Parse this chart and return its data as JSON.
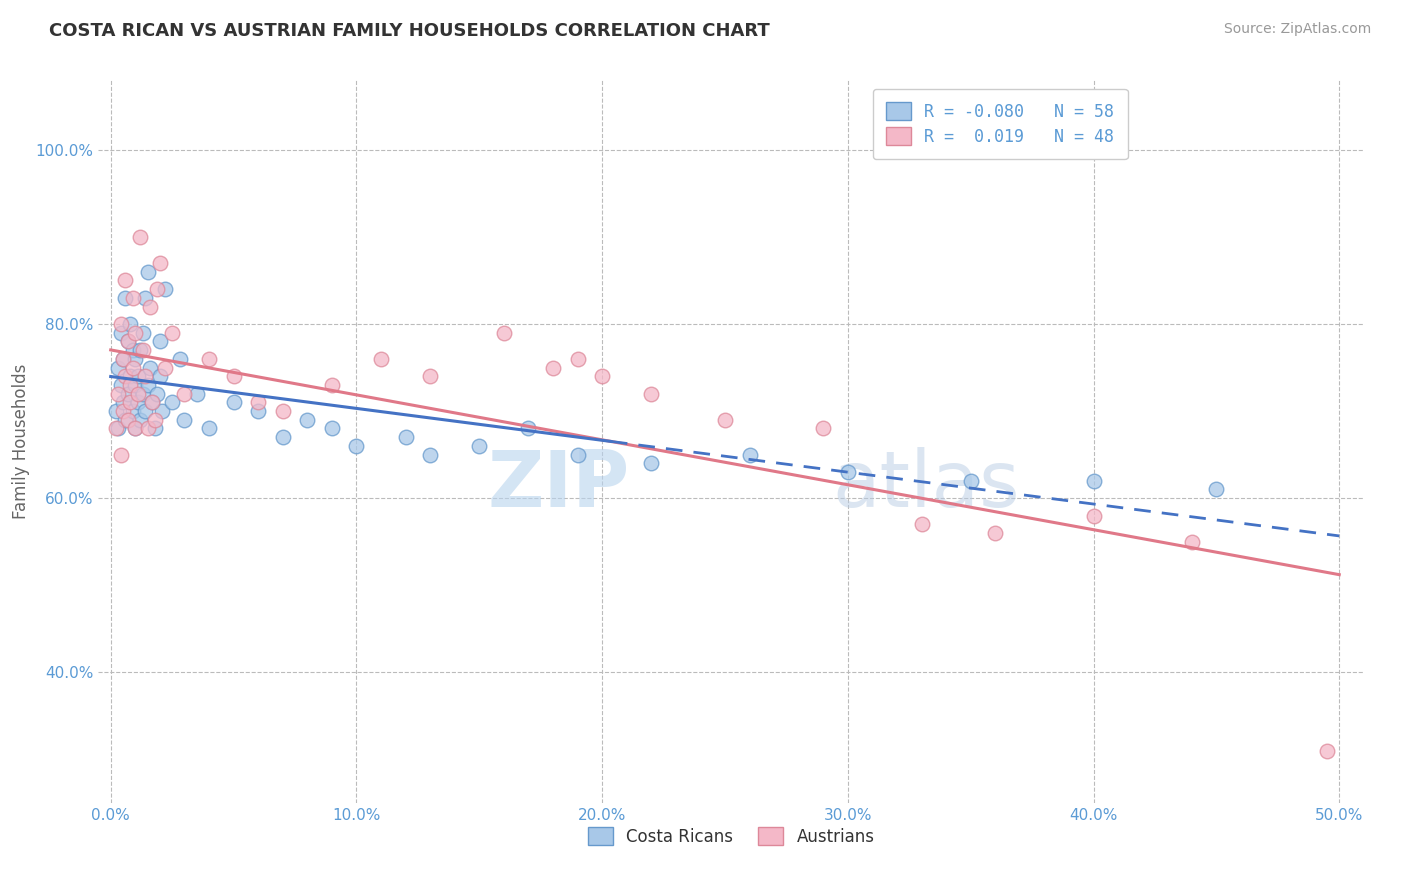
{
  "title": "COSTA RICAN VS AUSTRIAN FAMILY HOUSEHOLDS CORRELATION CHART",
  "source": "Source: ZipAtlas.com",
  "xlabel_vals": [
    0.0,
    10.0,
    20.0,
    30.0,
    40.0,
    50.0
  ],
  "ylabel": "Family Households",
  "ylabel_vals": [
    40.0,
    60.0,
    80.0,
    100.0
  ],
  "xlim": [
    -0.5,
    51.0
  ],
  "ylim": [
    25.0,
    108.0
  ],
  "costa_rican_R": -0.08,
  "costa_rican_N": 58,
  "austrian_R": 0.019,
  "austrian_N": 48,
  "blue_color": "#a8c8e8",
  "pink_color": "#f4b8c8",
  "blue_edge_color": "#6699cc",
  "pink_edge_color": "#dd8899",
  "blue_line_color": "#4472c4",
  "pink_line_color": "#e07888",
  "legend_label_1": "Costa Ricans",
  "legend_label_2": "Austrians",
  "watermark_zip": "ZIP",
  "watermark_atlas": "atlas",
  "costa_rican_x": [
    0.2,
    0.3,
    0.3,
    0.4,
    0.4,
    0.5,
    0.5,
    0.6,
    0.6,
    0.7,
    0.7,
    0.8,
    0.8,
    0.9,
    0.9,
    1.0,
    1.0,
    1.0,
    1.1,
    1.1,
    1.2,
    1.2,
    1.3,
    1.3,
    1.4,
    1.4,
    1.5,
    1.5,
    1.6,
    1.7,
    1.8,
    1.9,
    2.0,
    2.0,
    2.1,
    2.2,
    2.5,
    2.8,
    3.0,
    3.5,
    4.0,
    5.0,
    6.0,
    7.0,
    8.0,
    9.0,
    10.0,
    12.0,
    13.0,
    15.0,
    17.0,
    19.0,
    22.0,
    26.0,
    30.0,
    35.0,
    40.0,
    45.0
  ],
  "costa_rican_y": [
    70,
    68,
    75,
    73,
    79,
    71,
    76,
    69,
    83,
    72,
    78,
    74,
    80,
    70,
    77,
    68,
    73,
    76,
    71,
    74,
    69,
    77,
    72,
    79,
    70,
    83,
    73,
    86,
    75,
    71,
    68,
    72,
    74,
    78,
    70,
    84,
    71,
    76,
    69,
    72,
    68,
    71,
    70,
    67,
    69,
    68,
    66,
    67,
    65,
    66,
    68,
    65,
    64,
    65,
    63,
    62,
    62,
    61
  ],
  "austrian_x": [
    0.2,
    0.3,
    0.4,
    0.4,
    0.5,
    0.5,
    0.6,
    0.6,
    0.7,
    0.7,
    0.8,
    0.8,
    0.9,
    0.9,
    1.0,
    1.0,
    1.1,
    1.2,
    1.3,
    1.4,
    1.5,
    1.6,
    1.7,
    1.8,
    1.9,
    2.0,
    2.2,
    2.5,
    3.0,
    4.0,
    5.0,
    6.0,
    7.0,
    9.0,
    11.0,
    13.0,
    16.0,
    18.0,
    19.0,
    20.0,
    22.0,
    25.0,
    29.0,
    33.0,
    36.0,
    40.0,
    44.0,
    49.5
  ],
  "austrian_y": [
    68,
    72,
    65,
    80,
    70,
    76,
    74,
    85,
    69,
    78,
    71,
    73,
    83,
    75,
    68,
    79,
    72,
    90,
    77,
    74,
    68,
    82,
    71,
    69,
    84,
    87,
    75,
    79,
    72,
    76,
    74,
    71,
    70,
    73,
    76,
    74,
    79,
    75,
    76,
    74,
    72,
    69,
    68,
    57,
    56,
    58,
    55,
    31
  ]
}
